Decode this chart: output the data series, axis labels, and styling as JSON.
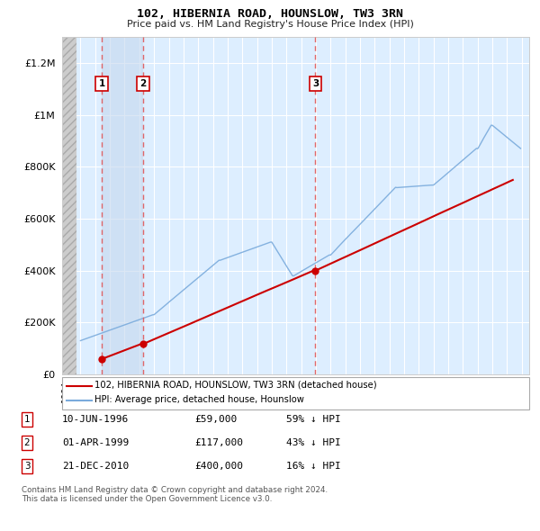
{
  "title": "102, HIBERNIA ROAD, HOUNSLOW, TW3 3RN",
  "subtitle": "Price paid vs. HM Land Registry's House Price Index (HPI)",
  "sales": [
    {
      "date": 1996.44,
      "price": 59000,
      "label": "1"
    },
    {
      "date": 1999.25,
      "price": 117000,
      "label": "2"
    },
    {
      "date": 2010.97,
      "price": 400000,
      "label": "3"
    }
  ],
  "sale_info": [
    {
      "num": "1",
      "date": "10-JUN-1996",
      "price": "£59,000",
      "pct": "59% ↓ HPI"
    },
    {
      "num": "2",
      "date": "01-APR-1999",
      "price": "£117,000",
      "pct": "43% ↓ HPI"
    },
    {
      "num": "3",
      "date": "21-DEC-2010",
      "price": "£400,000",
      "pct": "16% ↓ HPI"
    }
  ],
  "legend_items": [
    {
      "label": "102, HIBERNIA ROAD, HOUNSLOW, TW3 3RN (detached house)",
      "color": "#cc0000",
      "lw": 1.5
    },
    {
      "label": "HPI: Average price, detached house, Hounslow",
      "color": "#7aabdc",
      "lw": 1.0
    }
  ],
  "footer": "Contains HM Land Registry data © Crown copyright and database right 2024.\nThis data is licensed under the Open Government Licence v3.0.",
  "xmin": 1993.75,
  "xmax": 2025.5,
  "ymin": 0,
  "ymax": 1300000,
  "hatch_end": 1994.75,
  "dashed_line_color": "#e05050",
  "plot_bg_color": "#ddeeff",
  "shade_between_1_2_color": "#c8ddf0",
  "shade_between_2_end_color": "#ddeeff"
}
